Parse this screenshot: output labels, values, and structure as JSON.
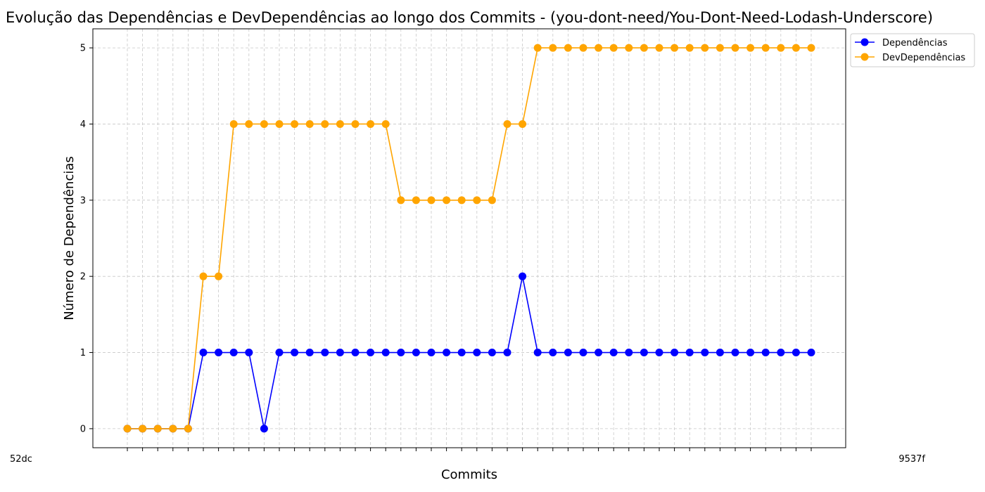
{
  "chart_data": {
    "type": "line",
    "title": "Evolução das Dependências e DevDependências ao longo dos Commits - (you-dont-need/You-Dont-Need-Lodash-Underscore)",
    "xlabel": "Commits",
    "ylabel": "Número de Dependências",
    "ylim": [
      -0.25,
      5.25
    ],
    "yticks": [
      0,
      1,
      2,
      3,
      4,
      5
    ],
    "grid": true,
    "legend_position": "top-right",
    "x_first_label": "52dc",
    "x_last_label": "9537f",
    "x_count": 46,
    "series": [
      {
        "name": "Dependências",
        "color": "#0000ff",
        "values": [
          0,
          0,
          0,
          0,
          0,
          1,
          1,
          1,
          1,
          0,
          1,
          1,
          1,
          1,
          1,
          1,
          1,
          1,
          1,
          1,
          1,
          1,
          1,
          1,
          1,
          1,
          2,
          1,
          1,
          1,
          1,
          1,
          1,
          1,
          1,
          1,
          1,
          1,
          1,
          1,
          1,
          1,
          1,
          1,
          1,
          1
        ]
      },
      {
        "name": "DevDependências",
        "color": "#ffa500",
        "values": [
          0,
          0,
          0,
          0,
          0,
          2,
          2,
          4,
          4,
          4,
          4,
          4,
          4,
          4,
          4,
          4,
          4,
          4,
          3,
          3,
          3,
          3,
          3,
          3,
          3,
          4,
          4,
          5,
          5,
          5,
          5,
          5,
          5,
          5,
          5,
          5,
          5,
          5,
          5,
          5,
          5,
          5,
          5,
          5,
          5,
          5
        ]
      }
    ]
  }
}
